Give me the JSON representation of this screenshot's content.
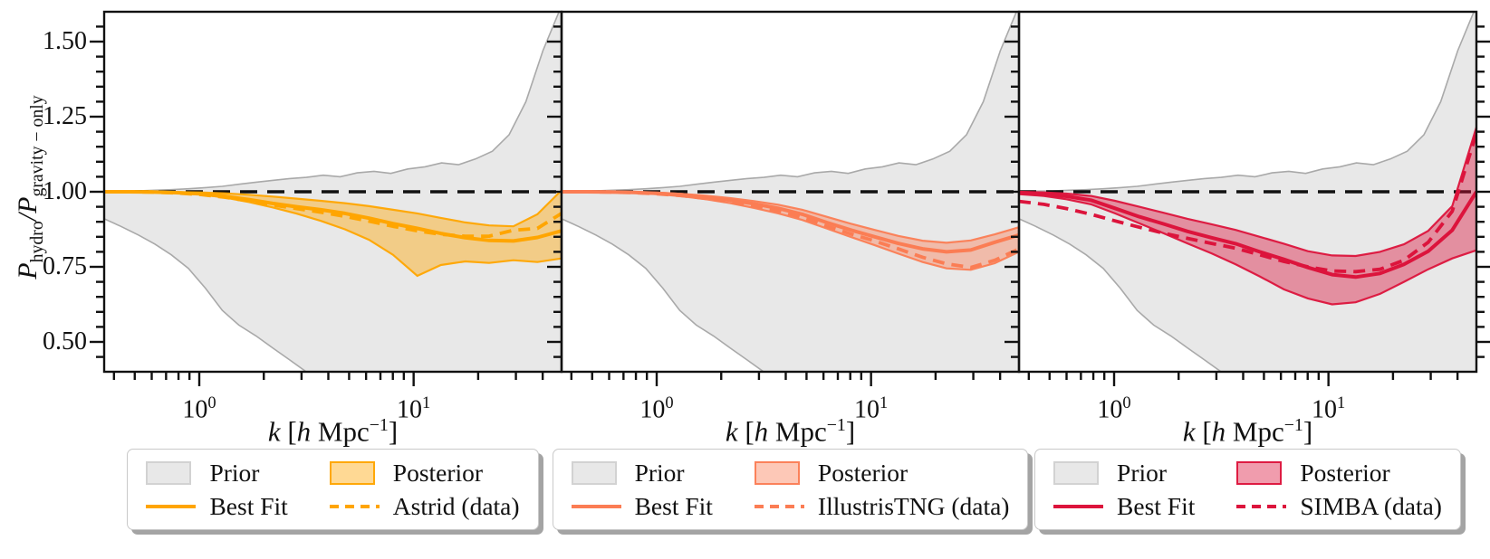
{
  "figure": {
    "background": "#ffffff",
    "ylabel_parts": {
      "P1": "P",
      "sub1": "hydro",
      "slash": "/",
      "P2": "P",
      "sub2": "gravity − only"
    },
    "xlabel_parts": {
      "k": "k",
      "bracket_open": " [",
      "h": "h",
      "unit": " Mpc",
      "exp": "−1",
      "bracket_close": "]"
    }
  },
  "chart_data": {
    "type": "line",
    "xscale": "log",
    "xlim": [
      0.36,
      49
    ],
    "ylim": [
      0.4,
      1.6
    ],
    "grid": false,
    "legend_position": "below-panels",
    "reference_line_y": 1.0,
    "reference_line_color": "#111111",
    "y_ticks": [
      {
        "v": 1.5,
        "label": "1.50"
      },
      {
        "v": 1.25,
        "label": "1.25"
      },
      {
        "v": 1.0,
        "label": "1.00"
      },
      {
        "v": 0.75,
        "label": "0.75"
      },
      {
        "v": 0.5,
        "label": "0.50"
      }
    ],
    "x_ticks": [
      {
        "k": 1,
        "base": "10",
        "exp": "0"
      },
      {
        "k": 10,
        "base": "10",
        "exp": "1"
      }
    ],
    "x_minor_ticks": [
      0.4,
      0.5,
      0.6,
      0.7,
      0.8,
      0.9,
      2,
      3,
      4,
      5,
      6,
      7,
      8,
      9,
      20,
      30,
      40
    ],
    "prior": {
      "label": "Prior",
      "fill": "#e8e8e8",
      "edge": "#a9a9a9",
      "k": [
        0.36,
        0.43,
        0.52,
        0.62,
        0.74,
        0.89,
        1.07,
        1.28,
        1.53,
        1.84,
        2.2,
        2.64,
        3.16,
        3.79,
        4.54,
        5.45,
        6.53,
        7.83,
        9.39,
        11.3,
        13.5,
        16.2,
        19.4,
        23.3,
        27.9,
        33.4,
        40.1,
        49.0
      ],
      "upper": [
        1.001,
        1.002,
        1.003,
        1.005,
        1.007,
        1.01,
        1.014,
        1.018,
        1.025,
        1.032,
        1.038,
        1.044,
        1.048,
        1.055,
        1.05,
        1.063,
        1.068,
        1.061,
        1.076,
        1.083,
        1.096,
        1.09,
        1.109,
        1.135,
        1.19,
        1.3,
        1.47,
        1.62
      ],
      "lower": [
        0.91,
        0.885,
        0.856,
        0.826,
        0.79,
        0.745,
        0.678,
        0.605,
        0.556,
        0.52,
        0.48,
        0.44,
        0.4,
        0.378,
        0.36,
        0.35,
        0.342,
        0.336,
        0.33,
        0.326,
        0.322,
        0.32,
        0.318,
        0.32,
        0.325,
        0.332,
        0.345,
        0.36
      ]
    },
    "k": [
      0.36,
      0.47,
      0.6,
      0.78,
      1.01,
      1.31,
      1.7,
      2.2,
      2.85,
      3.69,
      4.78,
      6.19,
      8.01,
      10.4,
      13.4,
      17.4,
      22.5,
      29.2,
      37.8,
      49.0
    ],
    "panels": [
      {
        "name": "astrid",
        "color": "#FFA500",
        "legend": {
          "prior": "Prior",
          "posterior": "Posterior",
          "best_fit": "Best Fit",
          "data": "Astrid (data)"
        },
        "best_fit": [
          1.0,
          1.0,
          0.999,
          0.997,
          0.993,
          0.985,
          0.974,
          0.961,
          0.95,
          0.94,
          0.928,
          0.912,
          0.894,
          0.878,
          0.861,
          0.847,
          0.838,
          0.836,
          0.848,
          0.87
        ],
        "data": [
          1.0,
          1.0,
          0.999,
          0.996,
          0.991,
          0.982,
          0.97,
          0.956,
          0.944,
          0.932,
          0.918,
          0.902,
          0.885,
          0.87,
          0.858,
          0.852,
          0.852,
          0.872,
          0.878,
          0.928
        ],
        "post_upper": [
          1.0,
          1.0,
          1.0,
          0.999,
          0.998,
          0.995,
          0.99,
          0.984,
          0.977,
          0.97,
          0.962,
          0.952,
          0.94,
          0.928,
          0.913,
          0.898,
          0.888,
          0.885,
          0.925,
          1.005
        ],
        "post_lower": [
          1.0,
          0.999,
          0.998,
          0.996,
          0.991,
          0.981,
          0.966,
          0.948,
          0.927,
          0.903,
          0.875,
          0.84,
          0.79,
          0.72,
          0.756,
          0.768,
          0.763,
          0.772,
          0.766,
          0.778
        ]
      },
      {
        "name": "illustristng",
        "color": "#FB7D54",
        "legend": {
          "prior": "Prior",
          "posterior": "Posterior",
          "best_fit": "Best Fit",
          "data": "IllustrisTNG (data)"
        },
        "best_fit": [
          1.0,
          1.0,
          0.999,
          0.998,
          0.995,
          0.99,
          0.982,
          0.972,
          0.96,
          0.945,
          0.925,
          0.898,
          0.873,
          0.85,
          0.828,
          0.81,
          0.8,
          0.806,
          0.832,
          0.856
        ],
        "data": [
          1.0,
          1.0,
          0.999,
          0.997,
          0.993,
          0.987,
          0.978,
          0.966,
          0.952,
          0.936,
          0.914,
          0.886,
          0.86,
          0.836,
          0.81,
          0.782,
          0.76,
          0.748,
          0.772,
          0.81
        ],
        "post_upper": [
          1.0,
          1.0,
          1.0,
          0.999,
          0.997,
          0.993,
          0.987,
          0.979,
          0.969,
          0.957,
          0.94,
          0.917,
          0.894,
          0.873,
          0.853,
          0.837,
          0.83,
          0.838,
          0.858,
          0.882
        ],
        "post_lower": [
          1.0,
          1.0,
          0.999,
          0.996,
          0.992,
          0.985,
          0.975,
          0.962,
          0.946,
          0.928,
          0.906,
          0.878,
          0.85,
          0.822,
          0.794,
          0.766,
          0.745,
          0.74,
          0.762,
          0.8
        ]
      },
      {
        "name": "simba",
        "color": "#DC143C",
        "legend": {
          "prior": "Prior",
          "posterior": "Posterior",
          "best_fit": "Best Fit",
          "data": "SIMBA (data)"
        },
        "best_fit": [
          0.996,
          0.992,
          0.985,
          0.972,
          0.945,
          0.917,
          0.893,
          0.868,
          0.847,
          0.827,
          0.8,
          0.775,
          0.748,
          0.724,
          0.716,
          0.728,
          0.758,
          0.802,
          0.872,
          1.0
        ],
        "data": [
          0.968,
          0.958,
          0.944,
          0.925,
          0.903,
          0.882,
          0.862,
          0.845,
          0.828,
          0.812,
          0.79,
          0.768,
          0.75,
          0.736,
          0.734,
          0.742,
          0.772,
          0.832,
          0.935,
          1.195
        ],
        "post_upper": [
          1.0,
          0.998,
          0.994,
          0.986,
          0.97,
          0.95,
          0.93,
          0.91,
          0.892,
          0.873,
          0.85,
          0.827,
          0.802,
          0.788,
          0.786,
          0.8,
          0.825,
          0.87,
          0.952,
          1.215
        ],
        "post_lower": [
          0.992,
          0.986,
          0.975,
          0.958,
          0.928,
          0.895,
          0.862,
          0.828,
          0.795,
          0.758,
          0.718,
          0.675,
          0.645,
          0.625,
          0.632,
          0.66,
          0.7,
          0.742,
          0.778,
          0.805
        ]
      }
    ]
  }
}
